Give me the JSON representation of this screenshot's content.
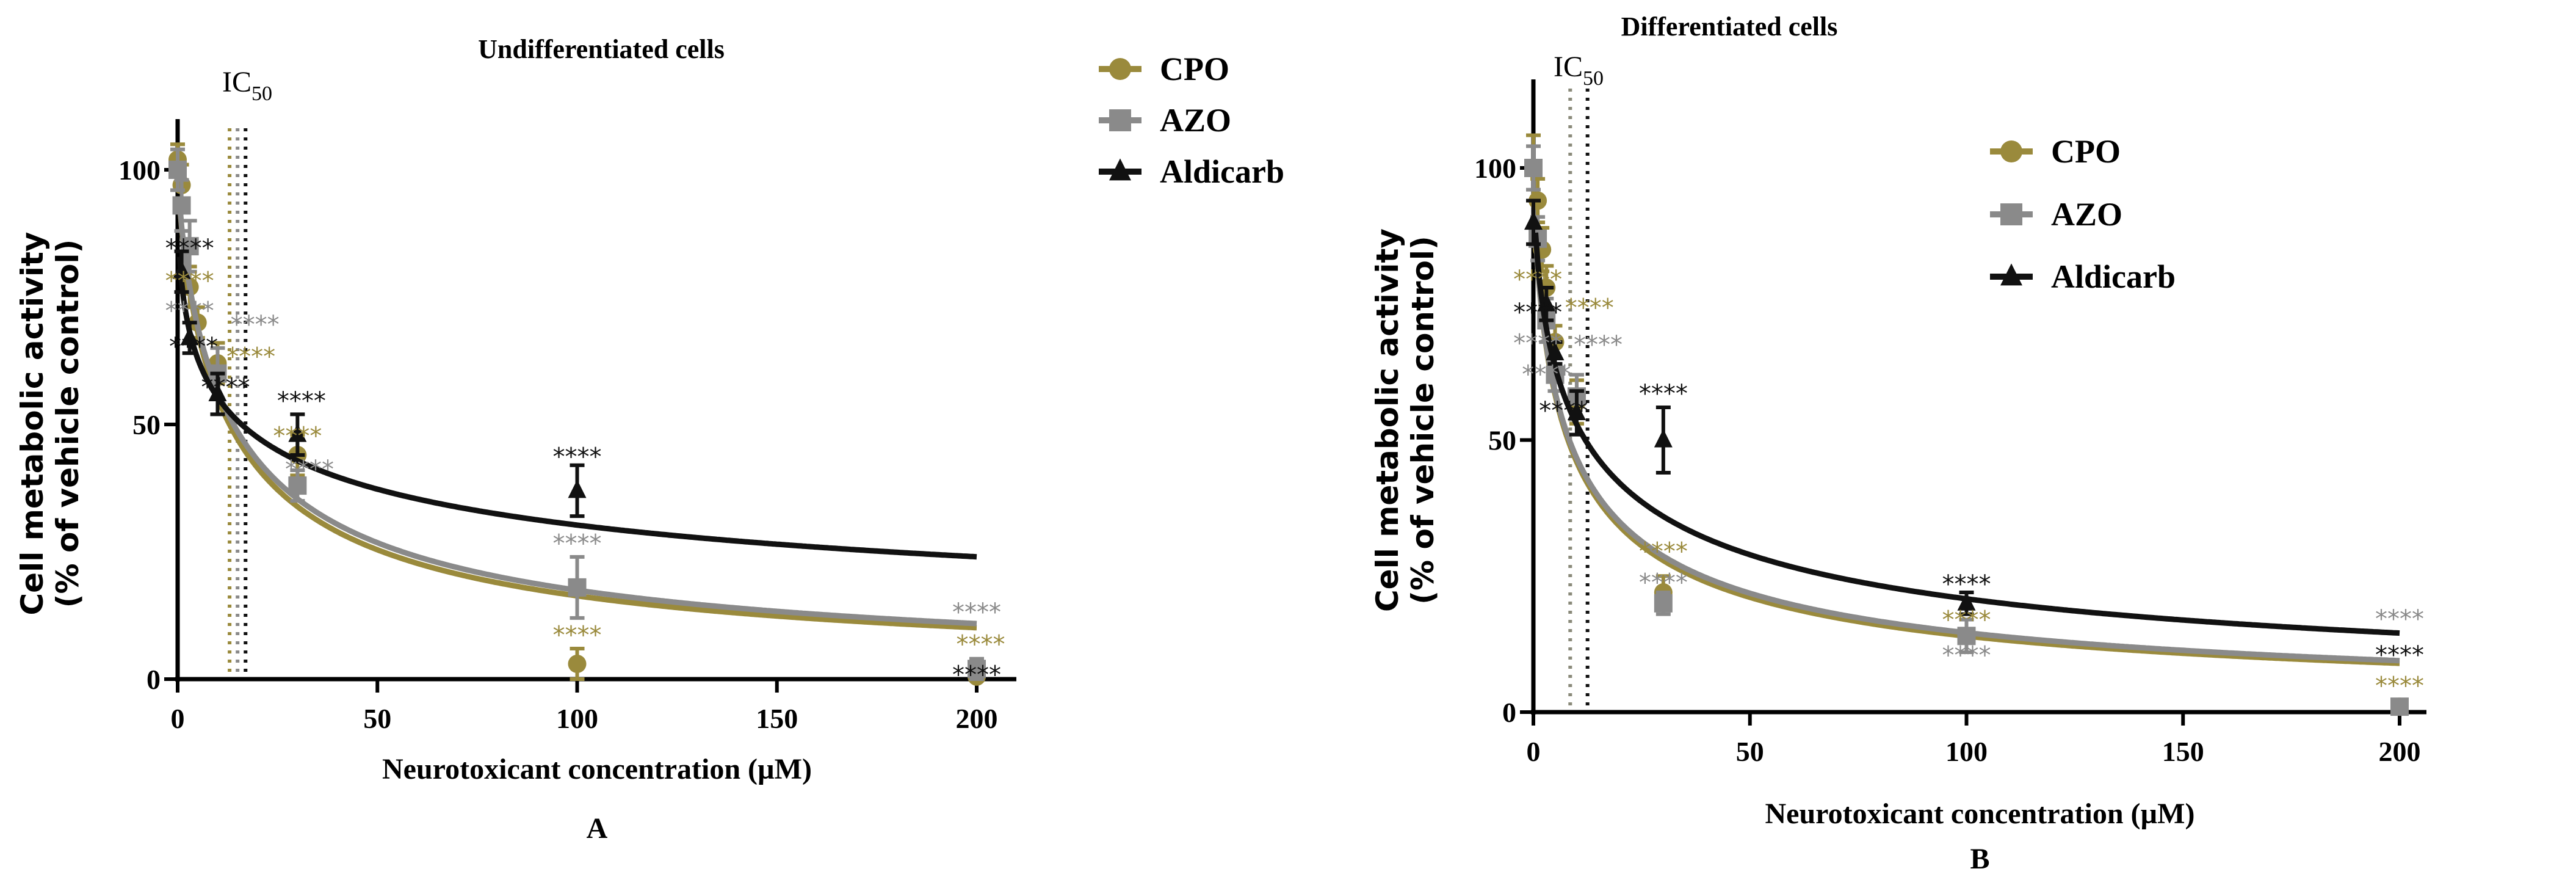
{
  "chart_data": [
    {
      "type": "line",
      "panel_label": "A",
      "title": "Undifferentiated cells",
      "xlabel": "Neurotoxicant concentration (µM)",
      "ylabel_line1": "Cell metabolic activity",
      "ylabel_line2": "(% of vehicle control)",
      "xlim": [
        0,
        210
      ],
      "ylim": [
        0,
        110
      ],
      "xticks": [
        0,
        50,
        100,
        150,
        200
      ],
      "yticks": [
        0,
        50,
        100
      ],
      "ic50_label": "IC",
      "ic50_sub": "50",
      "legend_position": "top-right",
      "series": [
        {
          "name": "CPO",
          "color": "#9a8a3c",
          "marker": "circle",
          "x": [
            0,
            1,
            3,
            5,
            10,
            30,
            100,
            200
          ],
          "y": [
            102,
            97,
            77,
            70,
            62,
            44,
            3,
            0.5
          ],
          "err": [
            3,
            4,
            4,
            3,
            4,
            4,
            3,
            1
          ],
          "fit": {
            "ic50": 13,
            "hill": 0.8
          }
        },
        {
          "name": "AZO",
          "color": "#8a8a8a",
          "marker": "square",
          "x": [
            0,
            1,
            3,
            10,
            30,
            100,
            200
          ],
          "y": [
            100,
            93,
            85,
            60,
            38,
            18,
            2
          ],
          "err": [
            4,
            5,
            5,
            5,
            3,
            6,
            2
          ],
          "fit": {
            "ic50": 14,
            "hill": 0.79
          }
        },
        {
          "name": "Aldicarb",
          "color": "#111111",
          "marker": "triangle",
          "x": [
            1,
            3,
            10,
            30,
            100
          ],
          "y": [
            80,
            67,
            56,
            48,
            37
          ],
          "err": [
            4,
            3,
            4,
            4,
            5
          ],
          "fit": {
            "ic50": 16,
            "hill": 0.456
          }
        }
      ],
      "ic50_lines": [
        {
          "x": 13,
          "color": "#9a8a3c"
        },
        {
          "x": 15,
          "color": "#8a8a8a"
        },
        {
          "x": 17,
          "color": "#111111"
        }
      ],
      "annotations": [
        {
          "text": "****",
          "x": 3,
          "y": 83,
          "series": 2
        },
        {
          "text": "****",
          "x": 3,
          "y": 78,
          "series": 0
        },
        {
          "text": "****",
          "x": 3,
          "y": 75,
          "series": 1
        },
        {
          "text": "****",
          "x": 4,
          "y": 68,
          "series": 2
        },
        {
          "text": "****",
          "x": 14,
          "y": 68,
          "series": 1
        },
        {
          "text": "****",
          "x": 13,
          "y": 66,
          "series": 0
        },
        {
          "text": "****",
          "x": 12,
          "y": 60,
          "series": 2
        },
        {
          "text": "****",
          "x": 31,
          "y": 53,
          "series": 2
        },
        {
          "text": "****",
          "x": 30,
          "y": 49,
          "series": 0
        },
        {
          "text": "****",
          "x": 33,
          "y": 41,
          "series": 1
        },
        {
          "text": "****",
          "x": 100,
          "y": 42,
          "series": 2
        },
        {
          "text": "****",
          "x": 100,
          "y": 25,
          "series": 1
        },
        {
          "text": "****",
          "x": 100,
          "y": 7,
          "series": 0
        },
        {
          "text": "****",
          "x": 200,
          "y": 11.5,
          "series": 1
        },
        {
          "text": "****",
          "x": 201,
          "y": 11,
          "series": 0
        },
        {
          "text": "****",
          "x": 200,
          "y": 5,
          "series": 2
        }
      ]
    },
    {
      "type": "line",
      "panel_label": "B",
      "title": "Differentiated cells",
      "xlabel": "Neurotoxicant concentration (µM)",
      "ylabel_line1": "Cell metabolic activity",
      "ylabel_line2": "(% of vehicle control)",
      "xlim": [
        0,
        210
      ],
      "ylim": [
        0,
        110
      ],
      "xticks": [
        0,
        50,
        100,
        150,
        200
      ],
      "yticks": [
        0,
        50,
        100
      ],
      "ic50_label": "IC",
      "ic50_sub": "50",
      "legend_position": "top-right",
      "series": [
        {
          "name": "CPO",
          "color": "#9a8a3c",
          "marker": "circle",
          "x": [
            0,
            1,
            2,
            3,
            5,
            10,
            30,
            100,
            200
          ],
          "y": [
            100,
            94,
            85,
            78,
            68,
            57,
            22,
            14,
            1
          ],
          "err": [
            6,
            4,
            4,
            4,
            3,
            4,
            3,
            3,
            1
          ],
          "fit": {
            "ic50": 8,
            "hill": 0.72
          }
        },
        {
          "name": "AZO",
          "color": "#8a8a8a",
          "marker": "square",
          "x": [
            0,
            1,
            3,
            5,
            10,
            30,
            100,
            200
          ],
          "y": [
            100,
            87,
            72,
            62,
            58,
            20,
            14,
            1
          ],
          "err": [
            4,
            4,
            4,
            3,
            4,
            2,
            3,
            1
          ],
          "fit": {
            "ic50": 8.3,
            "hill": 0.71
          }
        },
        {
          "name": "Aldicarb",
          "color": "#111111",
          "marker": "triangle",
          "x": [
            0,
            3,
            5,
            10,
            30,
            100
          ],
          "y": [
            90,
            75,
            66,
            55,
            50,
            20
          ],
          "err": [
            4,
            3,
            2,
            4,
            6,
            2
          ],
          "fit": {
            "ic50": 12,
            "hill": 0.63
          }
        }
      ],
      "ic50_lines": [
        {
          "x": 8.5,
          "color": "#8a8a7a"
        },
        {
          "x": 12.5,
          "color": "#111111"
        }
      ],
      "annotations": [
        {
          "text": "****",
          "x": 1,
          "y": 78,
          "series": 0
        },
        {
          "text": "****",
          "x": 1,
          "y": 76,
          "series": 2
        },
        {
          "text": "****",
          "x": 1,
          "y": 73,
          "series": 1
        },
        {
          "text": "****",
          "x": 3,
          "y": 70,
          "series": 1
        },
        {
          "text": "****",
          "x": 2,
          "y": 66,
          "series": 2
        },
        {
          "text": "****",
          "x": 10,
          "y": 66,
          "series": 1
        },
        {
          "text": "****",
          "x": 8,
          "y": 62,
          "series": 0
        },
        {
          "text": "****",
          "x": 30,
          "y": 57,
          "series": 2
        },
        {
          "text": "****",
          "x": 30,
          "y": 28,
          "series": 0
        },
        {
          "text": "****",
          "x": 30,
          "y": 25,
          "series": 1
        },
        {
          "text": "****",
          "x": 100,
          "y": 22,
          "series": 2
        },
        {
          "text": "****",
          "x": 100,
          "y": 19.5,
          "series": 0
        },
        {
          "text": "****",
          "x": 100,
          "y": 17,
          "series": 1
        },
        {
          "text": "****",
          "x": 200,
          "y": 9,
          "series": 2
        },
        {
          "text": "****",
          "x": 200,
          "y": 6,
          "series": 0
        },
        {
          "text": "****",
          "x": 200,
          "y": 3.5,
          "series": 1
        }
      ]
    }
  ]
}
